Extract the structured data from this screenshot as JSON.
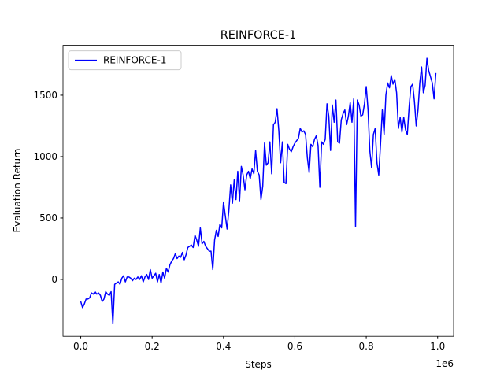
{
  "chart_data": {
    "type": "line",
    "title": "REINFORCE-1",
    "x_label": "Steps",
    "y_label": "Evaluation Return",
    "x_offset_label": "1e6",
    "legend": "upper left",
    "x": [
      0,
      5000,
      10000,
      15000,
      20000,
      25000,
      30000,
      35000,
      40000,
      45000,
      50000,
      55000,
      60000,
      65000,
      70000,
      75000,
      80000,
      85000,
      90000,
      95000,
      100000,
      105000,
      110000,
      115000,
      120000,
      125000,
      130000,
      135000,
      140000,
      145000,
      150000,
      155000,
      160000,
      165000,
      170000,
      175000,
      180000,
      185000,
      190000,
      195000,
      200000,
      205000,
      210000,
      215000,
      220000,
      225000,
      230000,
      235000,
      240000,
      245000,
      250000,
      255000,
      260000,
      265000,
      270000,
      275000,
      280000,
      285000,
      290000,
      295000,
      300000,
      305000,
      310000,
      315000,
      320000,
      325000,
      330000,
      335000,
      340000,
      345000,
      350000,
      355000,
      360000,
      365000,
      370000,
      375000,
      380000,
      385000,
      390000,
      395000,
      400000,
      405000,
      410000,
      415000,
      420000,
      425000,
      430000,
      435000,
      440000,
      445000,
      450000,
      455000,
      460000,
      465000,
      470000,
      475000,
      480000,
      485000,
      490000,
      495000,
      500000,
      505000,
      510000,
      515000,
      520000,
      525000,
      530000,
      535000,
      540000,
      545000,
      550000,
      555000,
      560000,
      565000,
      570000,
      575000,
      580000,
      585000,
      590000,
      595000,
      600000,
      605000,
      610000,
      615000,
      620000,
      625000,
      630000,
      635000,
      640000,
      645000,
      650000,
      655000,
      660000,
      665000,
      670000,
      675000,
      680000,
      685000,
      690000,
      695000,
      700000,
      705000,
      710000,
      715000,
      720000,
      725000,
      730000,
      735000,
      740000,
      745000,
      750000,
      755000,
      760000,
      765000,
      770000,
      775000,
      780000,
      785000,
      790000,
      795000,
      800000,
      805000,
      810000,
      815000,
      820000,
      825000,
      830000,
      835000,
      840000,
      845000,
      850000,
      855000,
      860000,
      865000,
      870000,
      875000,
      880000,
      885000,
      890000,
      895000,
      900000,
      905000,
      910000,
      915000,
      920000,
      925000,
      930000,
      935000,
      940000,
      945000,
      950000,
      955000,
      960000,
      965000,
      970000,
      975000,
      980000,
      985000,
      990000,
      995000
    ],
    "series": [
      {
        "name": "REINFORCE-1",
        "color": "#0000ff",
        "values": [
          -180,
          -230,
          -200,
          -160,
          -160,
          -150,
          -110,
          -120,
          -100,
          -120,
          -110,
          -130,
          -180,
          -160,
          -100,
          -120,
          -130,
          -100,
          -360,
          -40,
          -30,
          -20,
          -40,
          10,
          30,
          -20,
          20,
          20,
          10,
          -10,
          10,
          0,
          20,
          0,
          30,
          -20,
          20,
          40,
          0,
          80,
          10,
          30,
          50,
          -20,
          40,
          -30,
          60,
          10,
          90,
          60,
          120,
          150,
          170,
          210,
          170,
          190,
          180,
          220,
          160,
          200,
          260,
          270,
          280,
          260,
          360,
          320,
          270,
          420,
          290,
          310,
          270,
          250,
          230,
          230,
          80,
          320,
          400,
          350,
          450,
          420,
          630,
          520,
          410,
          560,
          770,
          620,
          810,
          650,
          880,
          640,
          920,
          850,
          730,
          850,
          880,
          820,
          900,
          860,
          1050,
          880,
          850,
          650,
          760,
          1110,
          930,
          950,
          1120,
          860,
          1260,
          1280,
          1390,
          1210,
          950,
          1120,
          790,
          780,
          1100,
          1060,
          1040,
          1080,
          1110,
          1130,
          1150,
          1230,
          1200,
          1210,
          1180,
          990,
          870,
          1100,
          1080,
          1140,
          1170,
          1090,
          750,
          1120,
          1100,
          1140,
          1430,
          1330,
          1050,
          1420,
          1280,
          1460,
          1120,
          1110,
          1300,
          1350,
          1380,
          1260,
          1330,
          1440,
          1280,
          1470,
          430,
          1460,
          1420,
          1330,
          1340,
          1430,
          1570,
          1380,
          1050,
          910,
          1180,
          1230,
          950,
          850,
          1100,
          1380,
          1180,
          1500,
          1600,
          1560,
          1660,
          1590,
          1630,
          1520,
          1230,
          1320,
          1200,
          1320,
          1220,
          1180,
          1400,
          1570,
          1590,
          1450,
          1250,
          1380,
          1600,
          1730,
          1520,
          1580,
          1800,
          1700,
          1650,
          1600,
          1470,
          1680
        ]
      }
    ],
    "xlim": [
      -49750,
      1044750
    ],
    "ylim": [
      -463,
      1906
    ],
    "xticks": [
      {
        "value": 0,
        "label": "0.0"
      },
      {
        "value": 200000,
        "label": "0.2"
      },
      {
        "value": 400000,
        "label": "0.4"
      },
      {
        "value": 600000,
        "label": "0.6"
      },
      {
        "value": 800000,
        "label": "0.8"
      },
      {
        "value": 1000000,
        "label": "1.0"
      }
    ],
    "yticks": [
      0,
      500,
      1000,
      1500
    ]
  }
}
